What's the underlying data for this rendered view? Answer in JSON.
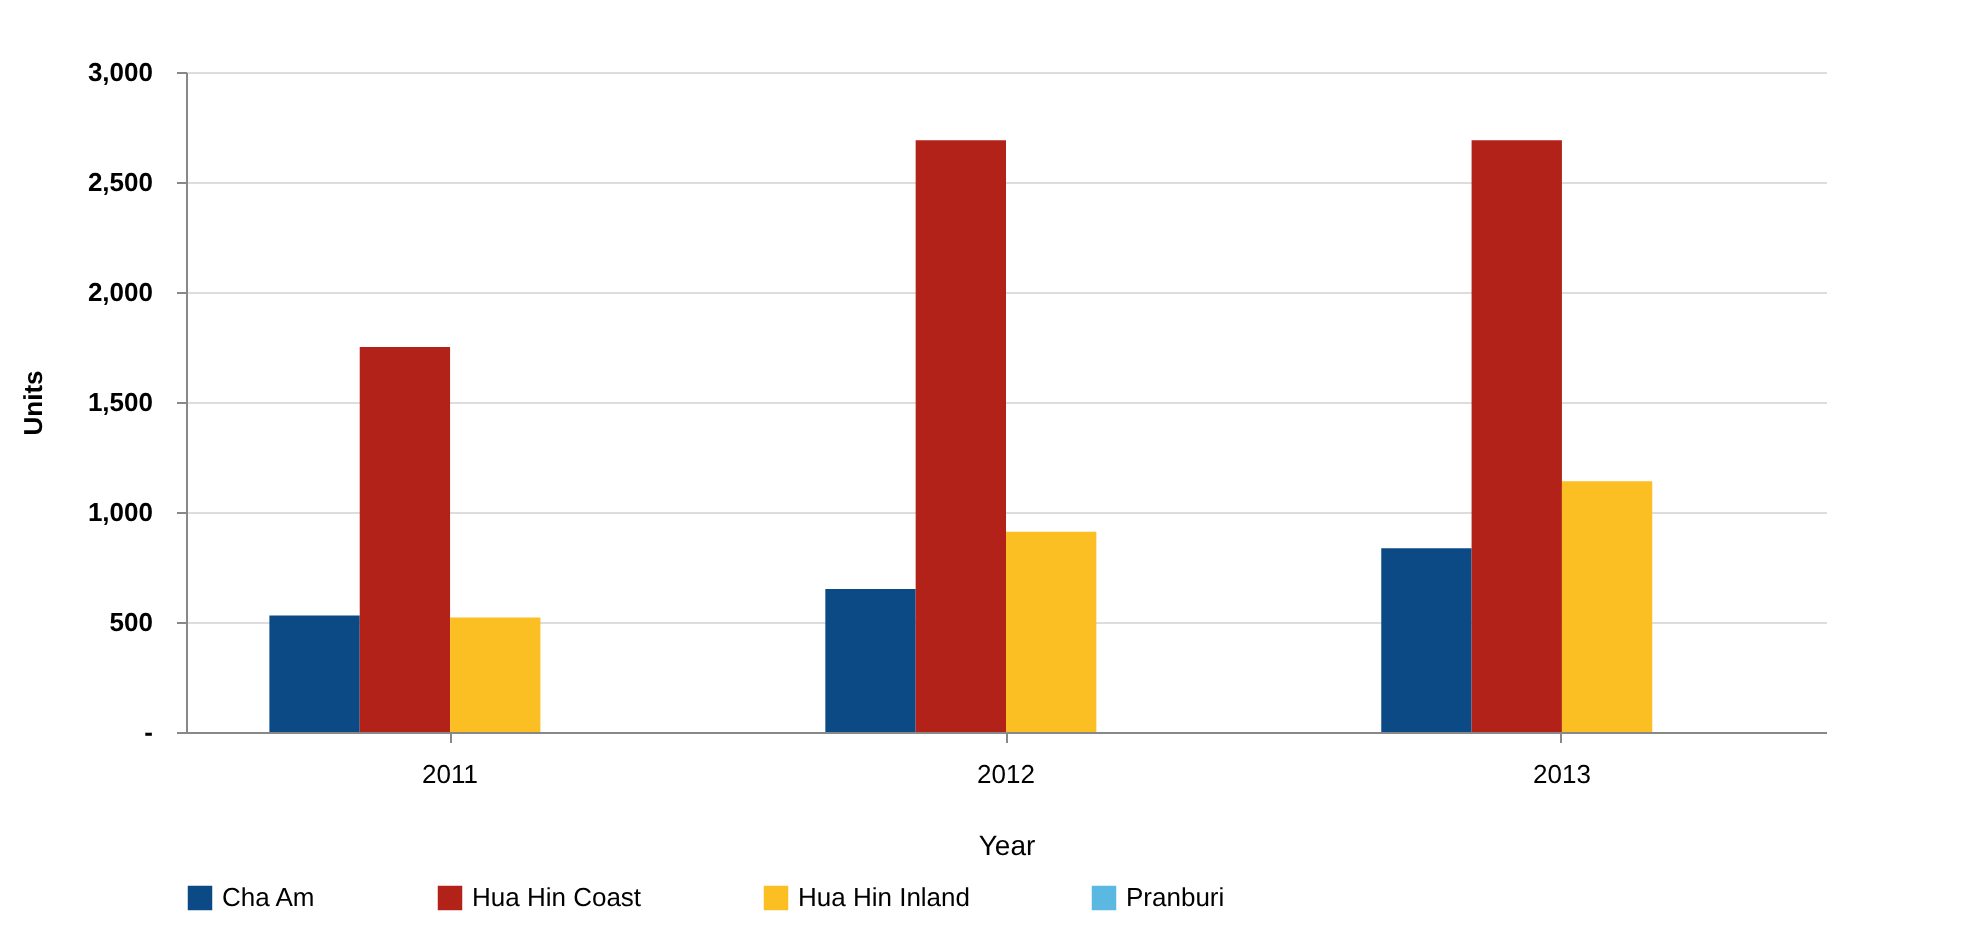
{
  "chart_data": {
    "type": "bar",
    "xlabel": "Year",
    "ylabel": "Units",
    "categories": [
      "2011",
      "2012",
      "2013"
    ],
    "series": [
      {
        "name": "Cha Am",
        "color": "#0b4a84",
        "values": [
          530,
          650,
          835
        ]
      },
      {
        "name": "Hua Hin Coast",
        "color": "#b22218",
        "values": [
          1750,
          2690,
          2690
        ]
      },
      {
        "name": "Hua Hin Inland",
        "color": "#fbbf24",
        "values": [
          520,
          910,
          1140
        ]
      },
      {
        "name": "Pranburi",
        "color": "#5bb8e0",
        "values": [
          null,
          0,
          0
        ]
      }
    ],
    "ylim": [
      0,
      3000
    ],
    "yticks": [
      {
        "value": 0,
        "label": "-"
      },
      {
        "value": 500,
        "label": "500"
      },
      {
        "value": 1000,
        "label": "1,000"
      },
      {
        "value": 1500,
        "label": "1,500"
      },
      {
        "value": 2000,
        "label": "2,000"
      },
      {
        "value": 2500,
        "label": "2,500"
      },
      {
        "value": 3000,
        "label": "3,000"
      }
    ],
    "grid": "y",
    "legend": "bottom"
  }
}
